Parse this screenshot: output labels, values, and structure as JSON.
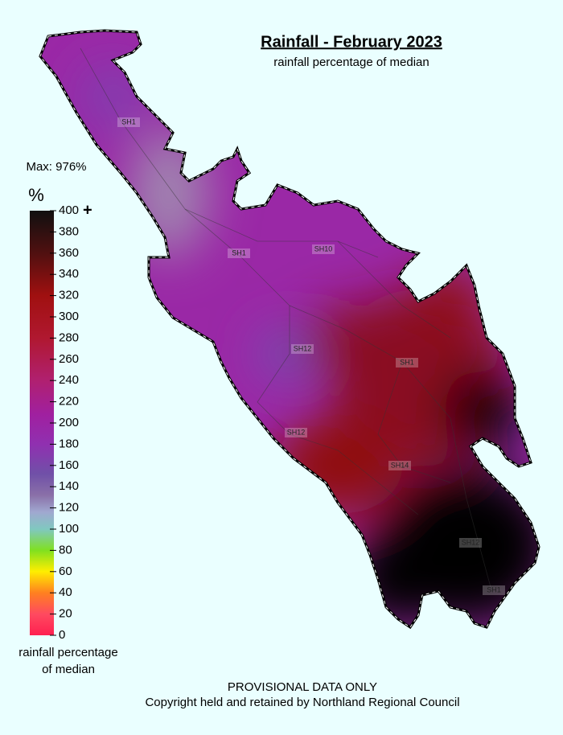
{
  "title": "Rainfall - February 2023",
  "subtitle": "rainfall percentage of median",
  "max_label": "Max: 976%",
  "legend": {
    "unit": "%",
    "ticks": [
      0,
      20,
      40,
      60,
      80,
      100,
      120,
      140,
      160,
      180,
      200,
      220,
      240,
      260,
      280,
      300,
      320,
      340,
      360,
      380,
      400
    ],
    "over_marker": "+",
    "caption_lines": [
      "rainfall percentage",
      "of median"
    ]
  },
  "road_labels": [
    "SH1",
    "SH1",
    "SH10",
    "SH12",
    "SH1",
    "SH12",
    "SH14",
    "SH12",
    "SH1"
  ],
  "footer": [
    "PROVISIONAL DATA ONLY",
    "Copyright held and retained by Northland Regional Council"
  ]
}
